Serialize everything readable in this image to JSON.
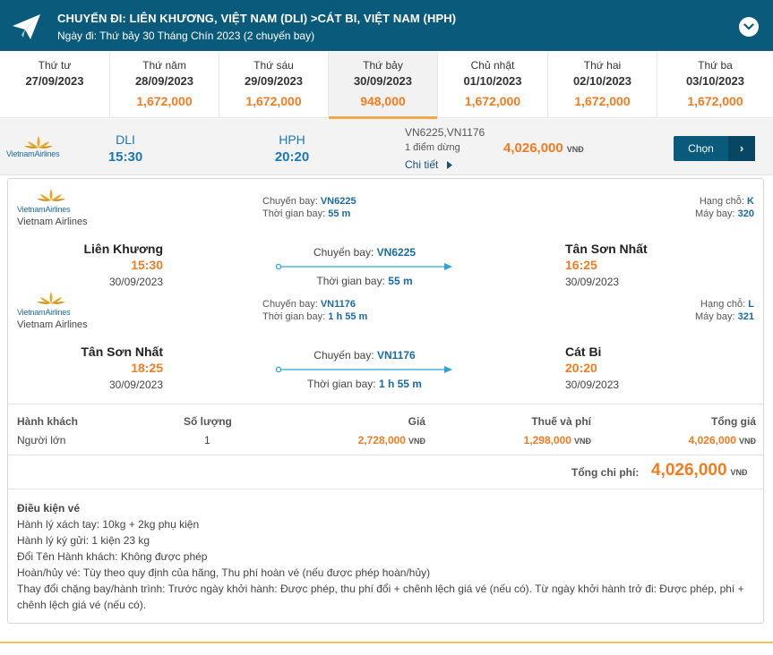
{
  "header": {
    "title": "CHUYẾN ĐI: LIÊN KHƯƠNG, VIỆT NAM (DLI) >CÁT BI, VIỆT NAM (HPH)",
    "subtitle": "Ngày đi: Thứ bảy 30 Tháng Chín 2023 (2 chuyến bay)",
    "icon": "paper-plane-icon",
    "collapse_icon": "chevron-down-icon",
    "bg_color": "#0a5a7c"
  },
  "dates": [
    {
      "dow": "Thứ tư",
      "date": "27/09/2023",
      "price": ""
    },
    {
      "dow": "Thứ năm",
      "date": "28/09/2023",
      "price": "1,672,000"
    },
    {
      "dow": "Thứ sáu",
      "date": "29/09/2023",
      "price": "1,672,000"
    },
    {
      "dow": "Thứ bảy",
      "date": "30/09/2023",
      "price": "948,000"
    },
    {
      "dow": "Chủ nhật",
      "date": "01/10/2023",
      "price": "1,672,000"
    },
    {
      "dow": "Thứ hai",
      "date": "02/10/2023",
      "price": "1,672,000"
    },
    {
      "dow": "Thứ ba",
      "date": "03/10/2023",
      "price": "1,672,000"
    }
  ],
  "selected_date_index": 3,
  "summary": {
    "airline_logo_text_a": "Vietnam",
    "airline_logo_text_b": "Airlines",
    "from_code": "DLI",
    "from_time": "15:30",
    "to_code": "HPH",
    "to_time": "20:20",
    "flight_numbers": "VN6225,VN1176",
    "stops": "1 điểm dừng",
    "detail_link": "Chi tiết",
    "price": "4,026,000",
    "currency": "VNĐ",
    "choose_button": "Chọn",
    "choose_arrow": "›"
  },
  "segments": [
    {
      "airline": "Vietnam Airlines",
      "flight_label": "Chuyến bay:",
      "flight_no": "VN6225",
      "duration_label": "Thời gian bay:",
      "duration": "55 m",
      "class_label": "Hạng chỗ:",
      "class": "K",
      "aircraft_label": "Máy bay:",
      "aircraft": "320",
      "from_city": "Liên Khương",
      "from_time": "15:30",
      "from_date": "30/09/2023",
      "to_city": "Tân Sơn Nhất",
      "to_time": "16:25",
      "to_date": "30/09/2023"
    },
    {
      "airline": "Vietnam Airlines",
      "flight_label": "Chuyến bay:",
      "flight_no": "VN1176",
      "duration_label": "Thời gian bay:",
      "duration": "1 h 55 m",
      "class_label": "Hạng chỗ:",
      "class": "L",
      "aircraft_label": "Máy bay:",
      "aircraft": "321",
      "from_city": "Tân Sơn Nhất",
      "from_time": "18:25",
      "from_date": "30/09/2023",
      "to_city": "Cát Bi",
      "to_time": "20:20",
      "to_date": "30/09/2023"
    }
  ],
  "pricing": {
    "headers": {
      "passenger": "Hành khách",
      "quantity": "Số lượng",
      "price": "Giá",
      "tax": "Thuế và phí",
      "total": "Tổng giá"
    },
    "row": {
      "passenger": "Người lớn",
      "quantity": "1",
      "price": "2,728,000",
      "tax": "1,298,000",
      "total": "4,026,000"
    },
    "currency": "VNĐ",
    "grand_total_label": "Tổng chi phí:",
    "grand_total": "4,026,000"
  },
  "conditions": {
    "title": "Điều kiện vé",
    "lines": [
      "Hành lý xách tay: 10kg + 2kg phụ kiện",
      "Hành lý ký gửi: 1 kiện 23 kg",
      "Đổi Tên Hành khách: Không được phép",
      "Hoàn/hủy vé: Tùy theo quy định của hãng, Thu phí hoàn vé (nếu được phép hoàn/hủy)",
      "Thay đổi chặng bay/hành trình: Trước ngày khởi hành: Được phép, thu phí đổi + chênh lệch giá vé (nếu có). Từ ngày khởi hành trở đi: Được phép, phí + chênh lệch giá vé (nếu có)."
    ]
  },
  "colors": {
    "primary": "#0a5a7c",
    "accent_price": "#f47b20",
    "link_blue": "#1a78b8"
  }
}
